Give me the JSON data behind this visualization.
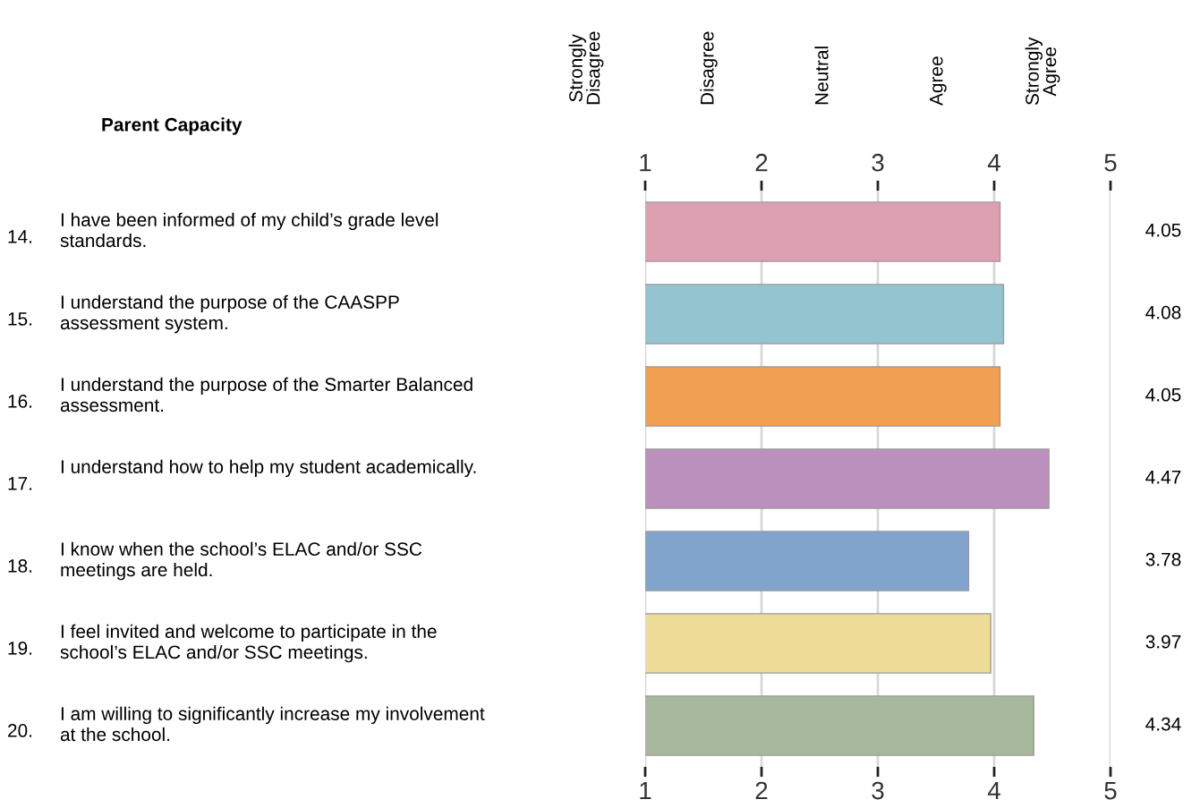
{
  "chart_data": {
    "type": "bar",
    "orientation": "horizontal",
    "title": "Parent Capacity",
    "categories": [
      "14. I have been informed of my child’s grade level\nstandards.",
      "15. I understand the purpose of the CAASPP\nassessment system.",
      "16. I understand the purpose of the Smarter Balanced\nassessment.",
      "17. I understand how to help my student academically.\n",
      "18. I know when the school’s ELAC and/or SSC\nmeetings are held.",
      "19. I feel invited and welcome to participate in the\nschool’s ELAC and/or SSC meetings.",
      "20. I am willing to significantly increase my involvement\nat the school."
    ],
    "values": [
      4.05,
      4.08,
      4.05,
      4.47,
      3.78,
      3.97,
      4.34
    ],
    "colors": [
      "#dca0b0",
      "#94c4d0",
      "#f0a050",
      "#bc90bc",
      "#80a4cc",
      "#eedc98",
      "#a8b89c"
    ],
    "data_labels": true,
    "xlim": [
      1,
      5
    ],
    "xticks": [
      1,
      2,
      3,
      4,
      5
    ],
    "x2lim": [
      1,
      5
    ],
    "x2ticks": [
      1,
      2,
      3,
      4,
      5
    ],
    "grid": "x",
    "annotations": [
      "Strongly\nDisagree",
      "Disagree",
      "Neutral",
      "Agree",
      "Strongly\nAgree"
    ]
  }
}
